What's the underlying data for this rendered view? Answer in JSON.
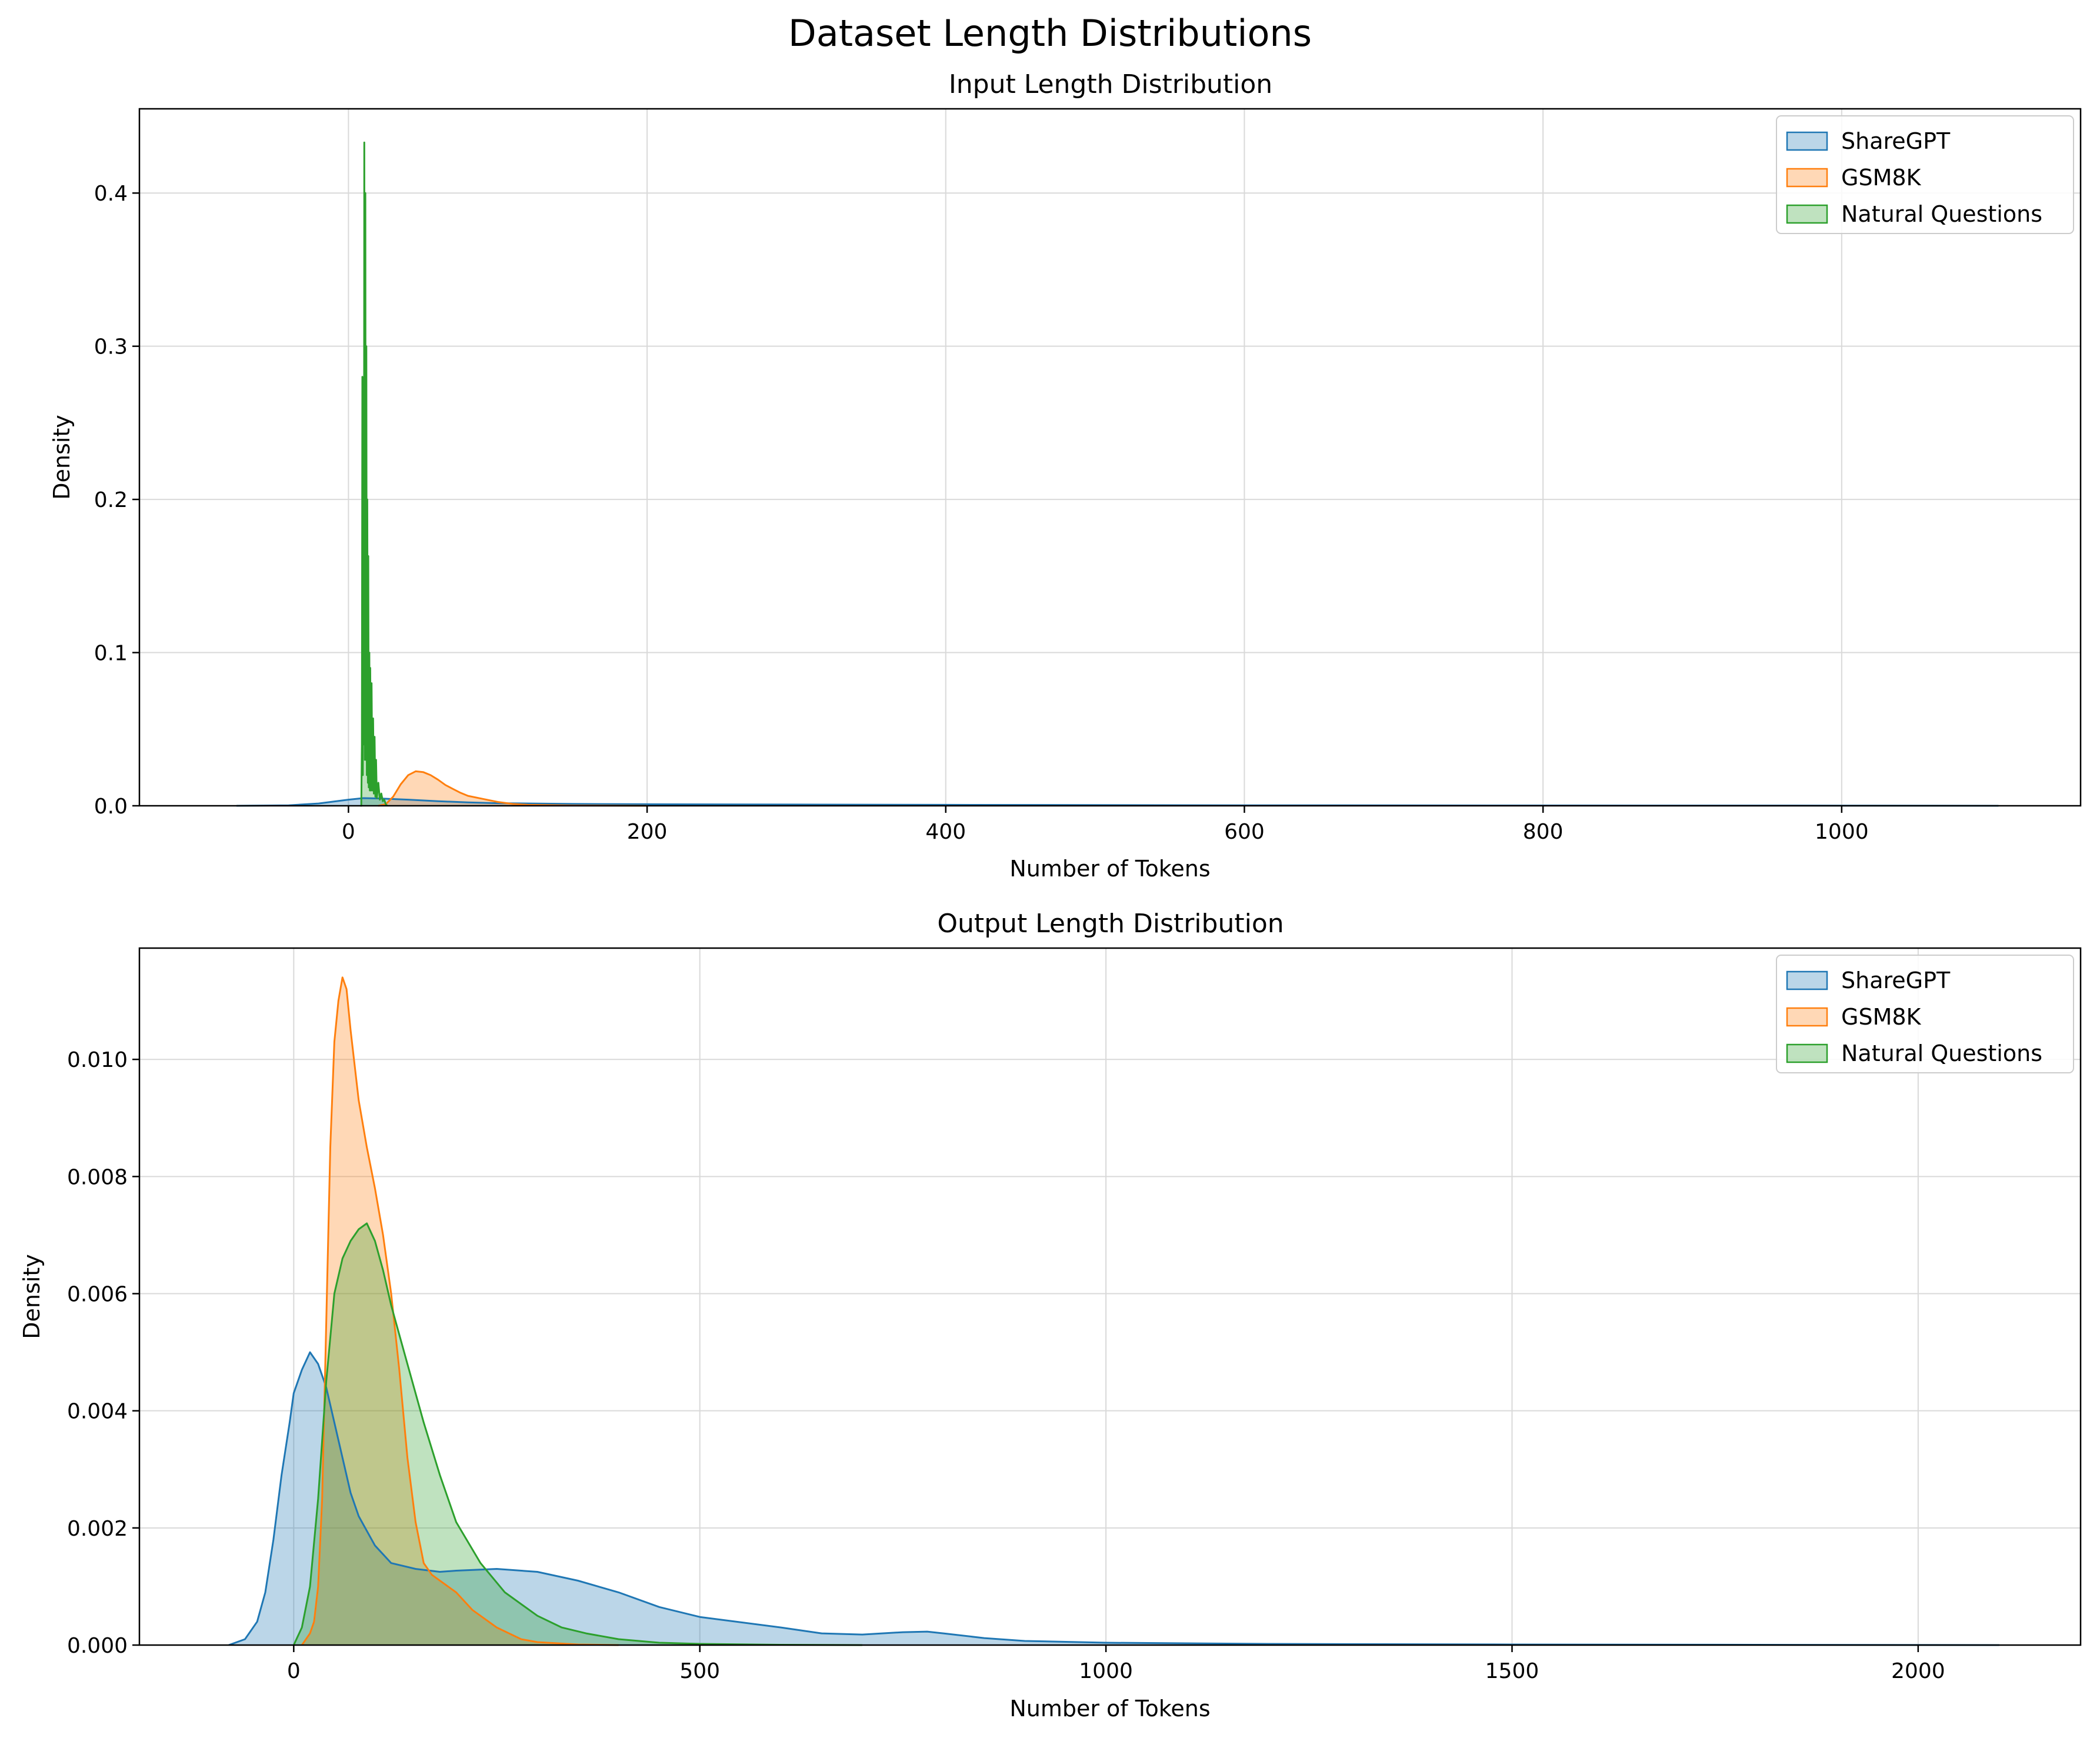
{
  "figure": {
    "suptitle": "Dataset Length Distributions",
    "colors": {
      "ShareGPT": "#1f77b4",
      "GSM8K": "#ff7f0e",
      "Natural Questions": "#2ca02c"
    }
  },
  "chart_data": [
    {
      "type": "area",
      "title": "Input Length Distribution",
      "xlabel": "Number of Tokens",
      "ylabel": "Density",
      "xlim": [
        -140,
        1160
      ],
      "ylim": [
        0,
        0.455
      ],
      "xticks": [
        0,
        200,
        400,
        600,
        800,
        1000
      ],
      "xtick_labels": [
        "0",
        "200",
        "400",
        "600",
        "800",
        "1000"
      ],
      "yticks": [
        0,
        0.1,
        0.2,
        0.3,
        0.4
      ],
      "ytick_labels": [
        "0.0",
        "0.1",
        "0.2",
        "0.3",
        "0.4"
      ],
      "grid": true,
      "legend": "top-right",
      "series": [
        {
          "name": "ShareGPT",
          "x": [
            -75,
            -40,
            -20,
            0,
            10,
            20,
            40,
            60,
            80,
            100,
            150,
            200,
            300,
            400,
            600,
            800,
            1000,
            1105
          ],
          "values": [
            0,
            0.0003,
            0.0015,
            0.004,
            0.005,
            0.0048,
            0.004,
            0.003,
            0.0022,
            0.0017,
            0.0012,
            0.001,
            0.0008,
            0.0006,
            0.0003,
            0.0002,
            0.0001,
            0
          ]
        },
        {
          "name": "GSM8K",
          "x": [
            20,
            25,
            30,
            35,
            40,
            45,
            50,
            55,
            60,
            65,
            70,
            75,
            80,
            90,
            100,
            110,
            120,
            150,
            200
          ],
          "values": [
            0,
            0.001,
            0.006,
            0.014,
            0.02,
            0.0225,
            0.022,
            0.02,
            0.017,
            0.0135,
            0.011,
            0.0085,
            0.0065,
            0.0045,
            0.0025,
            0.0012,
            0.0006,
            0.0002,
            0
          ]
        },
        {
          "name": "Natural Questions",
          "x": [
            8,
            8.6,
            9,
            9.3,
            9.6,
            10,
            10.3,
            10.6,
            11,
            11.3,
            11.6,
            12,
            12.3,
            12.6,
            13,
            13.3,
            13.6,
            14,
            14.3,
            14.6,
            15,
            15.5,
            16,
            16.5,
            17,
            17.5,
            18,
            18.5,
            19,
            20,
            21,
            22,
            23,
            24,
            25,
            26
          ],
          "values": [
            0,
            0,
            0.04,
            0.28,
            0.02,
            0.27,
            0.04,
            0.433,
            0.03,
            0.4,
            0.03,
            0.3,
            0.02,
            0.2,
            0.015,
            0.163,
            0.012,
            0.1,
            0.01,
            0.09,
            0.01,
            0.08,
            0.01,
            0.057,
            0.008,
            0.045,
            0.006,
            0.03,
            0.005,
            0.015,
            0.004,
            0.008,
            0.003,
            0.004,
            0.001,
            0
          ]
        }
      ]
    },
    {
      "type": "area",
      "title": "Output Length Distribution",
      "xlabel": "Number of Tokens",
      "ylabel": "Density",
      "xlim": [
        -190,
        2200
      ],
      "ylim": [
        0,
        0.0119
      ],
      "xticks": [
        0,
        500,
        1000,
        1500,
        2000
      ],
      "xtick_labels": [
        "0",
        "500",
        "1000",
        "1500",
        "2000"
      ],
      "yticks": [
        0,
        0.002,
        0.004,
        0.006,
        0.008,
        0.01
      ],
      "ytick_labels": [
        "0.000",
        "0.002",
        "0.004",
        "0.006",
        "0.008",
        "0.010"
      ],
      "grid": true,
      "legend": "top-right",
      "series": [
        {
          "name": "ShareGPT",
          "x": [
            -80,
            -60,
            -45,
            -35,
            -25,
            -15,
            -5,
            0,
            10,
            20,
            30,
            40,
            50,
            60,
            70,
            80,
            100,
            120,
            150,
            180,
            200,
            250,
            300,
            350,
            400,
            450,
            500,
            600,
            650,
            700,
            750,
            780,
            800,
            850,
            900,
            1000,
            1200,
            1500,
            1800,
            2100
          ],
          "values": [
            0,
            0.0001,
            0.0004,
            0.0009,
            0.0018,
            0.0029,
            0.0038,
            0.0043,
            0.0047,
            0.005,
            0.0048,
            0.0044,
            0.0038,
            0.0032,
            0.0026,
            0.0022,
            0.0017,
            0.0014,
            0.0013,
            0.00125,
            0.00127,
            0.0013,
            0.00125,
            0.0011,
            0.0009,
            0.00065,
            0.00048,
            0.0003,
            0.0002,
            0.00018,
            0.00022,
            0.00023,
            0.0002,
            0.00012,
            7e-05,
            4e-05,
            2e-05,
            1e-05,
            5e-06,
            0
          ]
        },
        {
          "name": "GSM8K",
          "x": [
            10,
            20,
            25,
            30,
            35,
            40,
            45,
            50,
            55,
            60,
            65,
            70,
            80,
            90,
            100,
            110,
            120,
            130,
            140,
            150,
            160,
            170,
            180,
            200,
            220,
            250,
            280,
            300,
            350,
            400
          ],
          "values": [
            0,
            0.0002,
            0.0004,
            0.001,
            0.0025,
            0.0055,
            0.0085,
            0.0103,
            0.011,
            0.0114,
            0.0112,
            0.0105,
            0.0093,
            0.0085,
            0.0078,
            0.007,
            0.006,
            0.0047,
            0.0032,
            0.0021,
            0.0014,
            0.0012,
            0.0011,
            0.0009,
            0.0006,
            0.0003,
            0.0001,
            5e-05,
            1e-05,
            0
          ]
        },
        {
          "name": "Natural Questions",
          "x": [
            0,
            10,
            20,
            30,
            40,
            50,
            60,
            70,
            80,
            90,
            100,
            110,
            120,
            140,
            160,
            180,
            200,
            230,
            260,
            300,
            330,
            360,
            400,
            450,
            500,
            600,
            700
          ],
          "values": [
            0,
            0.0003,
            0.001,
            0.0025,
            0.0045,
            0.006,
            0.0066,
            0.0069,
            0.0071,
            0.0072,
            0.0069,
            0.0064,
            0.0058,
            0.0048,
            0.0038,
            0.0029,
            0.0021,
            0.0014,
            0.0009,
            0.0005,
            0.0003,
            0.0002,
            0.0001,
            4e-05,
            2e-05,
            5e-06,
            0
          ]
        }
      ]
    }
  ]
}
